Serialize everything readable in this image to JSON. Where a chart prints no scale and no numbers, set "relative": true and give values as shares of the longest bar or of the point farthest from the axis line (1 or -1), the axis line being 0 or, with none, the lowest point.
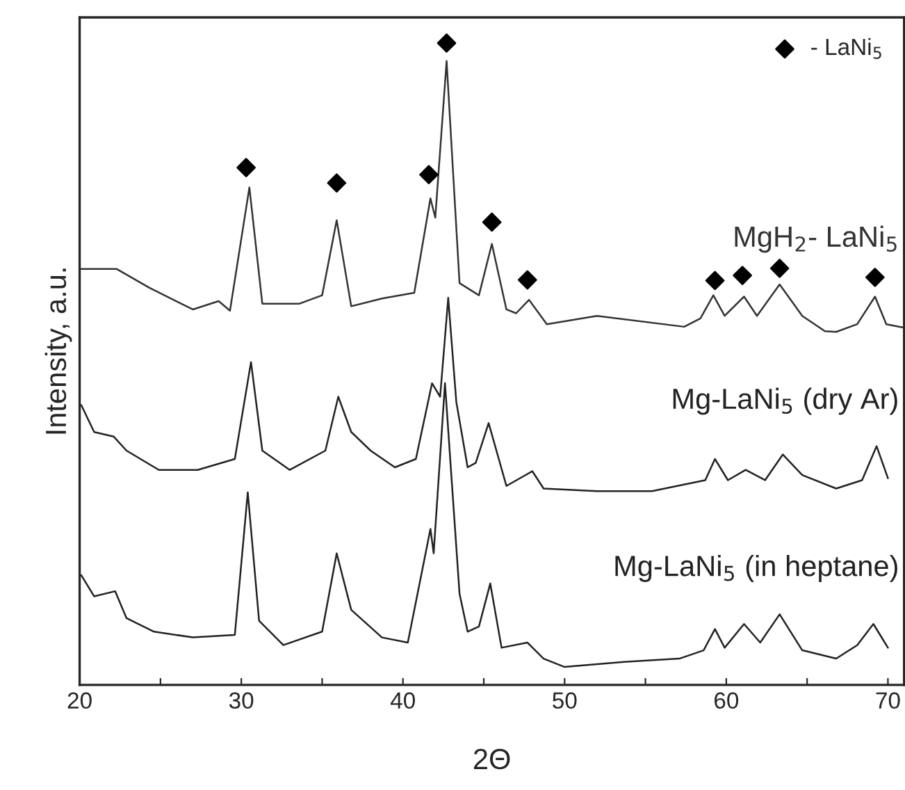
{
  "chart_data": {
    "type": "line",
    "relative": true,
    "xlabel": "2Θ",
    "ylabel": "Intensity, a.u.",
    "xlim": [
      20,
      71
    ],
    "xticks": [
      20,
      {
        "value": 25,
        "label": null
      },
      30,
      {
        "value": 35,
        "label": null
      },
      40,
      {
        "value": 45,
        "label": null
      },
      50,
      {
        "value": 55,
        "label": null
      },
      60,
      {
        "value": 65,
        "label": null
      },
      70
    ],
    "legend": "top right",
    "tick_labels": "x",
    "series": [
      {
        "name": "MgH$_{2}$- LaNi$_{5}$",
        "color": "#333333",
        "x": [
          20.1,
          22.3,
          24.3,
          27.0,
          28.6,
          29.3,
          30.5,
          31.3,
          33.6,
          35.0,
          35.9,
          36.8,
          38.7,
          40.7,
          41.7,
          42.0,
          42.7,
          43.5,
          44.7,
          45.5,
          46.4,
          47.0,
          47.8,
          48.9,
          52.0,
          57.4,
          58.4,
          59.2,
          59.9,
          61.1,
          61.9,
          63.3,
          64.7,
          66.1,
          66.8,
          68.1,
          69.2,
          69.9,
          70.9
        ],
        "values": [
          0.648,
          0.648,
          0.619,
          0.585,
          0.598,
          0.583,
          0.775,
          0.594,
          0.594,
          0.607,
          0.724,
          0.59,
          0.602,
          0.611,
          0.758,
          0.728,
          0.972,
          0.626,
          0.607,
          0.687,
          0.585,
          0.579,
          0.6,
          0.562,
          0.575,
          0.558,
          0.571,
          0.607,
          0.575,
          0.605,
          0.575,
          0.624,
          0.575,
          0.551,
          0.55,
          0.562,
          0.605,
          0.562,
          0.557
        ]
      },
      {
        "name": "Mg-LaNi$_{5}$ (dry Ar)",
        "color": "#222222",
        "x": [
          20.1,
          20.9,
          22.1,
          22.9,
          24.9,
          27.3,
          29.6,
          30.6,
          31.3,
          33.0,
          35.2,
          36.0,
          36.8,
          38.0,
          39.5,
          40.8,
          41.8,
          42.3,
          42.8,
          43.3,
          44.0,
          44.5,
          45.3,
          46.4,
          48.0,
          48.7,
          52.0,
          55.4,
          58.7,
          59.3,
          60.1,
          61.2,
          62.4,
          63.5,
          64.7,
          66.8,
          68.4,
          69.3,
          70.0
        ],
        "values": [
          0.436,
          0.394,
          0.387,
          0.365,
          0.335,
          0.335,
          0.352,
          0.503,
          0.365,
          0.335,
          0.365,
          0.449,
          0.394,
          0.365,
          0.339,
          0.352,
          0.47,
          0.449,
          0.603,
          0.441,
          0.339,
          0.346,
          0.408,
          0.31,
          0.333,
          0.306,
          0.302,
          0.302,
          0.319,
          0.352,
          0.319,
          0.335,
          0.319,
          0.359,
          0.327,
          0.306,
          0.319,
          0.372,
          0.322
        ]
      },
      {
        "name": "Mg-LaNi$_{5}$ (in heptane)",
        "color": "#222222",
        "x": [
          20.1,
          20.9,
          22.2,
          22.9,
          24.6,
          27.0,
          29.6,
          30.4,
          31.1,
          32.6,
          35.0,
          35.9,
          36.8,
          38.7,
          40.3,
          41.7,
          41.9,
          42.6,
          43.5,
          44.0,
          44.7,
          45.4,
          46.1,
          47.7,
          48.7,
          50.0,
          53.7,
          57.1,
          58.6,
          59.3,
          59.9,
          61.1,
          62.1,
          63.3,
          64.7,
          66.8,
          68.1,
          69.1,
          70.0
        ],
        "values": [
          0.171,
          0.138,
          0.146,
          0.104,
          0.083,
          0.074,
          0.078,
          0.3,
          0.1,
          0.062,
          0.083,
          0.205,
          0.117,
          0.074,
          0.066,
          0.243,
          0.205,
          0.47,
          0.142,
          0.083,
          0.091,
          0.158,
          0.058,
          0.066,
          0.041,
          0.028,
          0.036,
          0.041,
          0.054,
          0.087,
          0.058,
          0.095,
          0.066,
          0.11,
          0.054,
          0.041,
          0.062,
          0.095,
          0.058
        ]
      },
      {
        "name": "- LaNi$_{5}$",
        "type": "scatter",
        "marker": "diamond",
        "color": "#000000",
        "x": [
          30.3,
          35.9,
          41.6,
          42.7,
          45.5,
          47.7,
          59.3,
          61.0,
          63.3,
          69.2
        ],
        "values": [
          0.806,
          0.782,
          0.795,
          1.0,
          0.721,
          0.631,
          0.63,
          0.638,
          0.649,
          0.635
        ]
      }
    ]
  }
}
